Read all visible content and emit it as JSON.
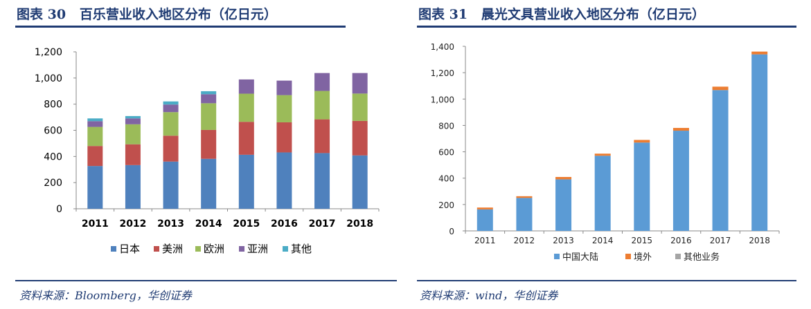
{
  "left": {
    "title": "图表 30   百乐营业收入地区分布（亿日元）",
    "source": "资料来源：Bloomberg，华创证券"
  },
  "right": {
    "title": "图表 31   晨光文具营业收入地区分布（亿日元）",
    "source": "资料来源：wind，华创证券"
  },
  "chart_data": [
    {
      "type": "bar",
      "stacked": true,
      "categories": [
        "2011",
        "2012",
        "2013",
        "2014",
        "2015",
        "2016",
        "2017",
        "2018"
      ],
      "ylim": [
        0,
        1200
      ],
      "yticks": [
        "0",
        "200",
        "400",
        "600",
        "800",
        "1,000",
        "1,200"
      ],
      "ytick_values": [
        0,
        200,
        400,
        600,
        800,
        1000,
        1200
      ],
      "grid": false,
      "legend": "bottom",
      "series": [
        {
          "name": "日本",
          "color": "#4f81bd",
          "values": [
            327,
            334,
            361,
            382,
            413,
            431,
            426,
            408
          ]
        },
        {
          "name": "美洲",
          "color": "#c0504d",
          "values": [
            153,
            159,
            198,
            221,
            252,
            230,
            258,
            264
          ]
        },
        {
          "name": "欧洲",
          "color": "#9bbb59",
          "values": [
            146,
            153,
            180,
            204,
            215,
            208,
            217,
            209
          ]
        },
        {
          "name": "亚洲",
          "color": "#8064a2",
          "values": [
            44,
            45,
            58,
            69,
            109,
            111,
            137,
            157
          ]
        },
        {
          "name": "其他",
          "color": "#4bacc6",
          "values": [
            21,
            18,
            24,
            23,
            0,
            0,
            0,
            0
          ]
        }
      ]
    },
    {
      "type": "bar",
      "stacked": true,
      "categories": [
        "2011",
        "2012",
        "2013",
        "2014",
        "2015",
        "2016",
        "2017",
        "2018"
      ],
      "ylim": [
        0,
        1400
      ],
      "yticks": [
        "0",
        "200",
        "400",
        "600",
        "800",
        "1,000",
        "1,200",
        "1,400"
      ],
      "ytick_values": [
        0,
        200,
        400,
        600,
        800,
        1000,
        1200,
        1400
      ],
      "grid": false,
      "legend": "bottom",
      "series": [
        {
          "name": "中国大陆",
          "color": "#5b9bd5",
          "values": [
            163,
            250,
            391,
            570,
            670,
            760,
            1068,
            1339
          ]
        },
        {
          "name": "境外",
          "color": "#ed7d31",
          "values": [
            14,
            13,
            18,
            16,
            20,
            21,
            26,
            21
          ]
        },
        {
          "name": "其他业务",
          "color": "#a5a5a5",
          "values": [
            0,
            0,
            0,
            0,
            0,
            0,
            0,
            0
          ]
        }
      ]
    }
  ]
}
